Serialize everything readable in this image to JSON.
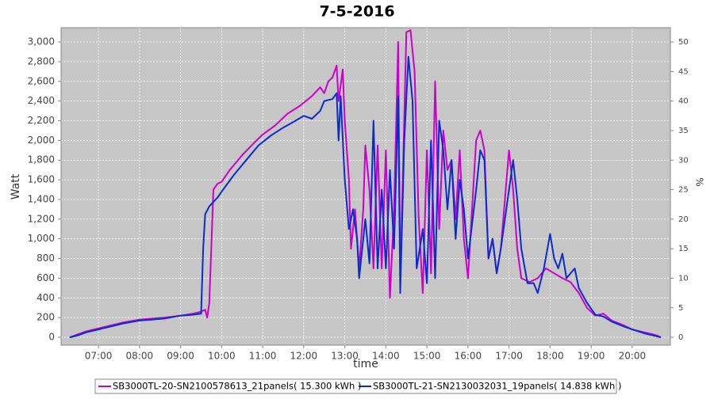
{
  "chart_data": {
    "type": "line",
    "title": "7-5-2016",
    "x_label": "time",
    "y_label": "Watt",
    "y2_label": "%",
    "grid": true,
    "xlim": [
      6.09,
      20.93
    ],
    "xticks": [
      {
        "value": 7,
        "label": "07:00"
      },
      {
        "value": 8,
        "label": "08:00"
      },
      {
        "value": 9,
        "label": "09:00"
      },
      {
        "value": 10,
        "label": "10:00"
      },
      {
        "value": 11,
        "label": "11:00"
      },
      {
        "value": 12,
        "label": "12:00"
      },
      {
        "value": 13,
        "label": "13:00"
      },
      {
        "value": 14,
        "label": "14:00"
      },
      {
        "value": 15,
        "label": "15:00"
      },
      {
        "value": 16,
        "label": "16:00"
      },
      {
        "value": 17,
        "label": "17:00"
      },
      {
        "value": 18,
        "label": "18:00"
      },
      {
        "value": 19,
        "label": "19:00"
      },
      {
        "value": 20,
        "label": "20:00"
      }
    ],
    "ylim": [
      -80,
      3145
    ],
    "yticks": [
      0,
      200,
      400,
      600,
      800,
      {
        "value": 1000,
        "label": "1,000"
      },
      {
        "value": 1200,
        "label": "1,200"
      },
      {
        "value": 1400,
        "label": "1,400"
      },
      {
        "value": 1600,
        "label": "1,600"
      },
      {
        "value": 1800,
        "label": "1,800"
      },
      {
        "value": 2000,
        "label": "2,000"
      },
      {
        "value": 2200,
        "label": "2,200"
      },
      {
        "value": 2400,
        "label": "2,400"
      },
      {
        "value": 2600,
        "label": "2,600"
      },
      {
        "value": 2800,
        "label": "2,800"
      },
      {
        "value": 3000,
        "label": "3,000"
      }
    ],
    "y2lim": [
      -1.33,
      52.42
    ],
    "y2ticks": [
      0,
      5,
      10,
      15,
      20,
      25,
      30,
      35,
      40,
      45,
      50
    ],
    "series": [
      {
        "name": "SB3000TL-20-SN2100578613_21panels( 15.300 kWh )",
        "color": "#cc00cc",
        "x": [
          6.3,
          6.5,
          6.7,
          7.0,
          7.3,
          7.6,
          8.0,
          8.3,
          8.6,
          9.0,
          9.3,
          9.5,
          9.6,
          9.65,
          9.7,
          9.8,
          9.9,
          10.0,
          10.2,
          10.5,
          10.8,
          11.0,
          11.3,
          11.6,
          11.9,
          12.2,
          12.4,
          12.5,
          12.6,
          12.7,
          12.8,
          12.85,
          12.95,
          13.0,
          13.1,
          13.15,
          13.25,
          13.35,
          13.45,
          13.5,
          13.6,
          13.7,
          13.8,
          13.9,
          14.0,
          14.1,
          14.2,
          14.3,
          14.35,
          14.4,
          14.5,
          14.6,
          14.7,
          14.8,
          14.9,
          15.0,
          15.1,
          15.2,
          15.3,
          15.4,
          15.5,
          15.6,
          15.7,
          15.8,
          15.9,
          16.0,
          16.1,
          16.2,
          16.3,
          16.4,
          16.5,
          16.6,
          16.7,
          16.8,
          17.0,
          17.1,
          17.2,
          17.3,
          17.5,
          17.7,
          17.9,
          18.1,
          18.3,
          18.5,
          18.7,
          18.9,
          19.1,
          19.3,
          19.5,
          19.8,
          20.0,
          20.3,
          20.6,
          20.7
        ],
        "values": [
          0,
          30,
          60,
          90,
          120,
          150,
          180,
          190,
          200,
          220,
          240,
          260,
          280,
          200,
          350,
          1500,
          1560,
          1580,
          1700,
          1850,
          1980,
          2060,
          2150,
          2270,
          2350,
          2450,
          2540,
          2480,
          2600,
          2640,
          2760,
          2400,
          2720,
          2200,
          1600,
          900,
          1300,
          700,
          1300,
          1950,
          1500,
          700,
          1950,
          700,
          1900,
          400,
          1300,
          3000,
          600,
          1400,
          3100,
          3120,
          2700,
          1200,
          450,
          1900,
          650,
          2600,
          1100,
          2100,
          1700,
          1800,
          1200,
          1900,
          1000,
          600,
          1300,
          2000,
          2100,
          1900,
          800,
          1000,
          650,
          900,
          1900,
          1500,
          900,
          600,
          560,
          600,
          700,
          650,
          600,
          560,
          450,
          300,
          220,
          240,
          170,
          120,
          80,
          50,
          20,
          0
        ]
      },
      {
        "name": "SB3000TL-21-SN2130032031_19panels( 14.838 kWh )",
        "color": "#0a2ccc",
        "x": [
          6.3,
          6.5,
          6.7,
          7.0,
          7.3,
          7.6,
          8.0,
          8.3,
          8.6,
          9.0,
          9.3,
          9.5,
          9.55,
          9.6,
          9.7,
          9.9,
          10.0,
          10.3,
          10.6,
          10.9,
          11.2,
          11.5,
          11.8,
          12.0,
          12.2,
          12.4,
          12.5,
          12.7,
          12.8,
          12.85,
          12.9,
          13.0,
          13.1,
          13.2,
          13.3,
          13.35,
          13.5,
          13.6,
          13.7,
          13.8,
          13.9,
          14.0,
          14.1,
          14.2,
          14.3,
          14.35,
          14.45,
          14.55,
          14.65,
          14.75,
          14.9,
          15.0,
          15.1,
          15.2,
          15.3,
          15.4,
          15.5,
          15.6,
          15.7,
          15.8,
          15.9,
          16.0,
          16.2,
          16.3,
          16.4,
          16.5,
          16.6,
          16.7,
          16.8,
          17.1,
          17.2,
          17.3,
          17.45,
          17.6,
          17.7,
          17.85,
          18.0,
          18.1,
          18.2,
          18.3,
          18.4,
          18.6,
          18.7,
          18.9,
          19.1,
          19.3,
          19.5,
          19.8,
          20.0,
          20.3,
          20.6,
          20.7
        ],
        "values": [
          0,
          20,
          50,
          80,
          110,
          140,
          170,
          180,
          190,
          220,
          230,
          240,
          900,
          1250,
          1330,
          1420,
          1480,
          1650,
          1800,
          1950,
          2050,
          2130,
          2200,
          2250,
          2220,
          2300,
          2400,
          2420,
          2480,
          2000,
          2450,
          1600,
          1100,
          1300,
          1000,
          600,
          1200,
          750,
          2200,
          700,
          1500,
          700,
          1700,
          900,
          2450,
          450,
          2000,
          2850,
          2400,
          700,
          1100,
          550,
          2000,
          600,
          2200,
          1900,
          1300,
          1800,
          1000,
          1600,
          1300,
          800,
          1500,
          1900,
          1800,
          800,
          1000,
          650,
          900,
          1800,
          1400,
          900,
          550,
          550,
          450,
          700,
          1050,
          800,
          700,
          850,
          600,
          700,
          500,
          350,
          230,
          210,
          160,
          110,
          80,
          40,
          10,
          0
        ]
      }
    ]
  }
}
